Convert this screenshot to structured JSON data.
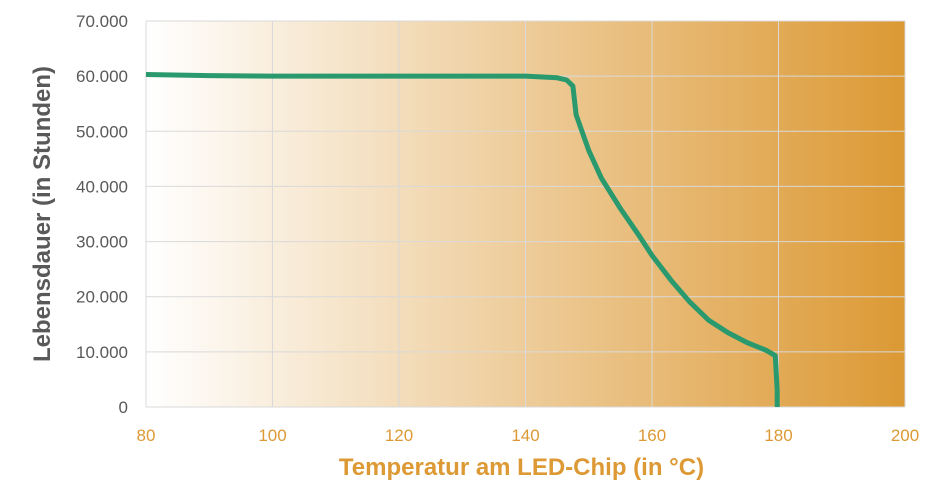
{
  "chart_data": {
    "type": "line",
    "title": "",
    "xlabel": "Temperatur am LED-Chip (in °C)",
    "ylabel": "Lebensdauer (in Stunden)",
    "xlim": [
      80,
      200
    ],
    "ylim": [
      0,
      70000
    ],
    "x_ticks": [
      80,
      100,
      120,
      140,
      160,
      180,
      200
    ],
    "x_tick_labels": [
      "80",
      "100",
      "120",
      "140",
      "160",
      "180",
      "200"
    ],
    "y_ticks": [
      0,
      10000,
      20000,
      30000,
      40000,
      50000,
      60000,
      70000
    ],
    "y_tick_labels": [
      "0",
      "10.000",
      "20.000",
      "30.000",
      "40.000",
      "50.000",
      "60.000",
      "70.000"
    ],
    "grid": true,
    "background_gradient": [
      "#ffffff",
      "#dc9934"
    ],
    "colors": {
      "line": "#2a9a6e",
      "x_axis_text": "#dc9934",
      "y_axis_text": "#595959",
      "grid": "#d9d9d9"
    },
    "series": [
      {
        "x": [
          80,
          90,
          100,
          110,
          120,
          130,
          140,
          145,
          146.5,
          147.5,
          148,
          150,
          152,
          155,
          158,
          160,
          163,
          166,
          169,
          172,
          175,
          178,
          179.5,
          179.8,
          179.8
        ],
        "y": [
          60300,
          60100,
          60000,
          60000,
          60000,
          60000,
          60000,
          59700,
          59300,
          58200,
          53000,
          46500,
          41500,
          36000,
          31000,
          27500,
          23000,
          19000,
          15700,
          13500,
          11700,
          10300,
          9300,
          3000,
          0
        ]
      }
    ]
  }
}
